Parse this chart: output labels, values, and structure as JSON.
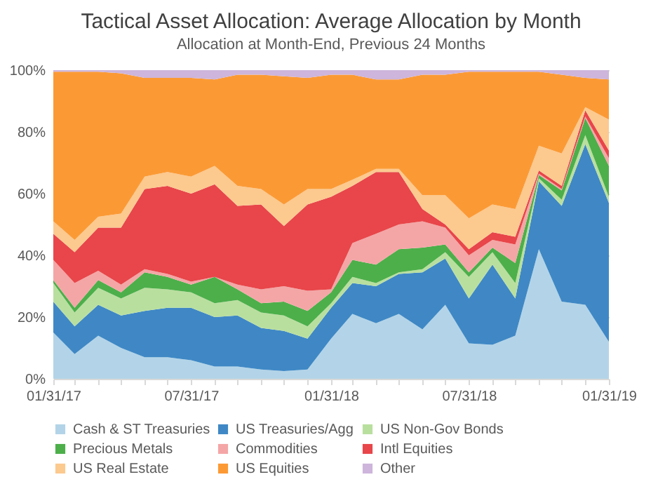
{
  "chart_data": {
    "type": "area",
    "stacked": true,
    "title": "Tactical Asset Allocation: Average Allocation by Month",
    "subtitle": "Allocation at Month-End, Previous 24 Months",
    "x": [
      "2017-01-31",
      "2017-02-28",
      "2017-03-31",
      "2017-04-30",
      "2017-05-31",
      "2017-06-30",
      "2017-07-31",
      "2017-08-31",
      "2017-09-30",
      "2017-10-31",
      "2017-11-30",
      "2017-12-31",
      "2018-01-31",
      "2018-02-28",
      "2018-03-31",
      "2018-04-30",
      "2018-05-31",
      "2018-06-30",
      "2018-07-31",
      "2018-08-31",
      "2018-09-30",
      "2018-10-31",
      "2018-11-30",
      "2018-12-31",
      "2019-01-31"
    ],
    "xlim": [
      "2017-01-31",
      "2019-01-31"
    ],
    "xticks": [
      {
        "value": "2017-01-31",
        "label": "01/31/17"
      },
      {
        "value": "2017-02-28",
        "label": null
      },
      {
        "value": "2017-03-31",
        "label": null
      },
      {
        "value": "2017-04-30",
        "label": null
      },
      {
        "value": "2017-05-31",
        "label": null
      },
      {
        "value": "2017-06-30",
        "label": null
      },
      {
        "value": "2017-07-31",
        "label": "07/31/17"
      },
      {
        "value": "2017-08-31",
        "label": null
      },
      {
        "value": "2017-09-30",
        "label": null
      },
      {
        "value": "2017-10-31",
        "label": null
      },
      {
        "value": "2017-11-30",
        "label": null
      },
      {
        "value": "2017-12-31",
        "label": null
      },
      {
        "value": "2018-01-31",
        "label": "01/31/18"
      },
      {
        "value": "2018-02-28",
        "label": null
      },
      {
        "value": "2018-03-31",
        "label": null
      },
      {
        "value": "2018-04-30",
        "label": null
      },
      {
        "value": "2018-05-31",
        "label": null
      },
      {
        "value": "2018-06-30",
        "label": null
      },
      {
        "value": "2018-07-31",
        "label": "07/31/18"
      },
      {
        "value": "2018-08-31",
        "label": null
      },
      {
        "value": "2018-09-30",
        "label": null
      },
      {
        "value": "2018-10-31",
        "label": null
      },
      {
        "value": "2018-11-30",
        "label": null
      },
      {
        "value": "2018-12-31",
        "label": null
      },
      {
        "value": "2019-01-31",
        "label": "01/31/19"
      }
    ],
    "ylim": [
      0,
      100
    ],
    "yticks": [
      {
        "value": 0,
        "label": "0%"
      },
      {
        "value": 20,
        "label": "20%"
      },
      {
        "value": 40,
        "label": "40%"
      },
      {
        "value": 60,
        "label": "60%"
      },
      {
        "value": 80,
        "label": "80%"
      },
      {
        "value": 100,
        "label": "100%"
      }
    ],
    "grid": "y",
    "legend": "bottom",
    "series": [
      {
        "name": "Cash & ST Treasuries",
        "color": "#b3d4e8",
        "values": [
          15,
          8,
          14,
          10,
          7,
          7,
          6,
          4,
          4,
          3,
          2.5,
          3,
          13,
          21,
          18,
          21,
          16,
          24,
          11.5,
          11,
          14,
          42,
          25,
          24,
          12
        ]
      },
      {
        "name": "US Treasuries/Agg",
        "color": "#3f88c5",
        "values": [
          10,
          9,
          10,
          10.5,
          15,
          16,
          17,
          16,
          16.5,
          13.5,
          13,
          10,
          10,
          10,
          12,
          13,
          18.5,
          15,
          14.5,
          26,
          12,
          22,
          31,
          52,
          45
        ]
      },
      {
        "name": "US Non-Gov Bonds",
        "color": "#b9df9f",
        "values": [
          6,
          4.5,
          5.5,
          5.5,
          7.5,
          6,
          5,
          4.5,
          5,
          5,
          5,
          4,
          1.5,
          2,
          1,
          0.5,
          1,
          2,
          7,
          4,
          5,
          1,
          2,
          3,
          2
        ]
      },
      {
        "name": "Precious Metals",
        "color": "#4daf4a",
        "values": [
          1,
          1.5,
          2.5,
          2,
          5,
          4,
          2.5,
          8.5,
          3.5,
          3,
          4.5,
          5,
          3.5,
          5.5,
          6,
          7.5,
          7,
          2.5,
          1.5,
          1.5,
          6.5,
          1,
          3,
          5.5,
          10
        ]
      },
      {
        "name": "Commodities",
        "color": "#f4a6a6",
        "values": [
          6.5,
          8,
          3,
          2.5,
          1,
          1,
          1,
          0,
          1.5,
          4.5,
          5,
          6.5,
          1,
          5.5,
          10,
          8,
          8.5,
          5.5,
          5.5,
          2.5,
          6,
          0.5,
          0.5,
          0.5,
          2.5
        ]
      },
      {
        "name": "Intl Equities",
        "color": "#e8464a",
        "values": [
          8.5,
          10,
          14,
          18.5,
          26,
          28.5,
          28.5,
          30,
          25.5,
          27.5,
          19.5,
          28,
          30,
          18.5,
          20,
          17,
          4,
          1,
          2,
          2.5,
          2.5,
          1,
          1,
          2,
          2.5
        ]
      },
      {
        "name": "US Real Estate",
        "color": "#fcc98f",
        "values": [
          4,
          4,
          3.5,
          4.5,
          4,
          4.5,
          5.5,
          6,
          6.5,
          5,
          7,
          5,
          2.5,
          2,
          1,
          1,
          4.5,
          9.5,
          10,
          9,
          9,
          8,
          10.5,
          1,
          10
        ]
      },
      {
        "name": "US Equities",
        "color": "#fb9a35",
        "values": [
          48.5,
          54.5,
          47,
          45.5,
          32,
          30.5,
          32,
          28,
          36,
          37,
          41.5,
          36,
          37,
          34,
          29,
          29,
          39,
          39,
          47.5,
          43,
          44.5,
          24,
          25.5,
          9.5,
          13
        ]
      },
      {
        "name": "Other",
        "color": "#cdb5db",
        "values": [
          0.5,
          0.5,
          0.5,
          1,
          2.5,
          2.5,
          2.5,
          3,
          1.5,
          1.5,
          2,
          2.5,
          1.5,
          1.5,
          3,
          3,
          1.5,
          1.5,
          0.5,
          0.5,
          0.5,
          0.5,
          1.5,
          2.5,
          3
        ]
      }
    ]
  }
}
